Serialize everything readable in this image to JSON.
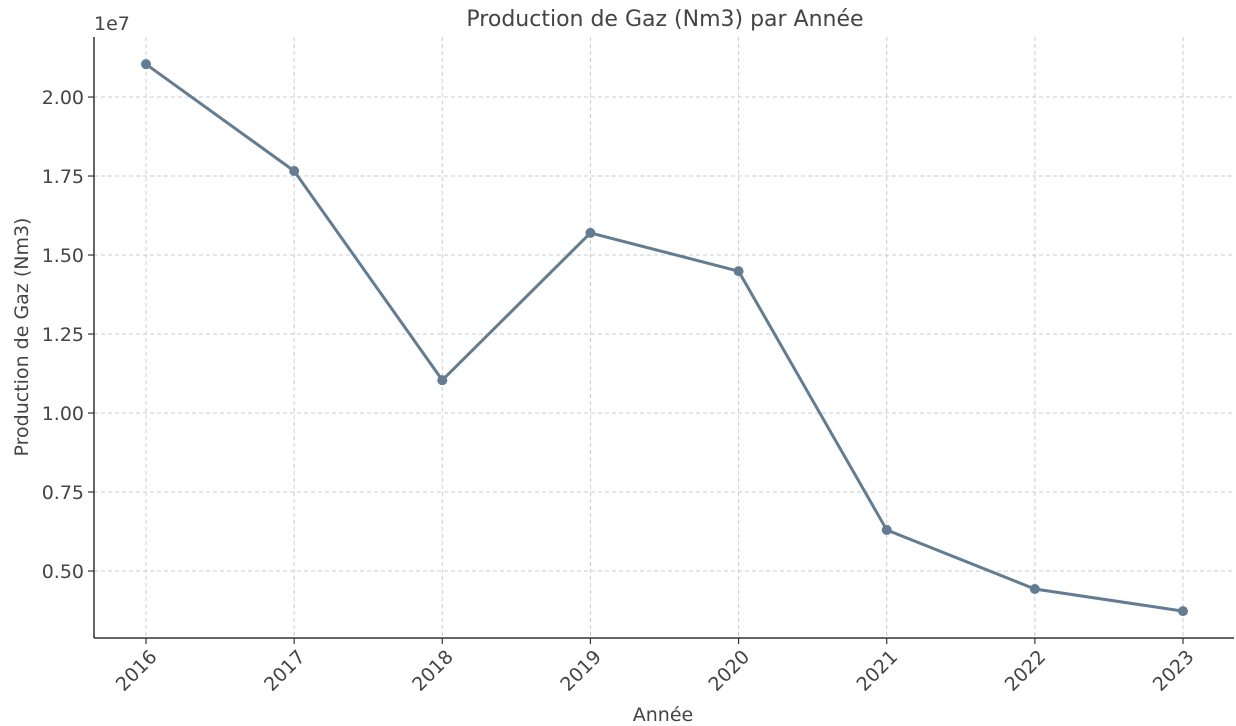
{
  "chart_data": {
    "type": "line",
    "title": "Production de Gaz (Nm3) par Année",
    "x_label": "Année",
    "y_label": "Production de Gaz (Nm3)",
    "y_offset_label": "1e7",
    "categories": [
      "2016",
      "2017",
      "2018",
      "2019",
      "2020",
      "2021",
      "2022",
      "2023"
    ],
    "series": [
      {
        "name": "Production de Gaz (Nm3)",
        "color": "#637c92",
        "values": [
          2.104,
          1.766,
          1.104,
          1.57,
          1.449,
          0.63,
          0.443,
          0.373
        ]
      }
    ],
    "ylim": [
      0.288,
      2.19
    ],
    "yticks": [
      {
        "value": 0.5,
        "label": "0.50"
      },
      {
        "value": 0.75,
        "label": "0.75"
      },
      {
        "value": 1.0,
        "label": "1.00"
      },
      {
        "value": 1.25,
        "label": "1.25"
      },
      {
        "value": 1.5,
        "label": "1.50"
      },
      {
        "value": 1.75,
        "label": "1.75"
      },
      {
        "value": 2.0,
        "label": "2.00"
      }
    ],
    "grid": true
  }
}
